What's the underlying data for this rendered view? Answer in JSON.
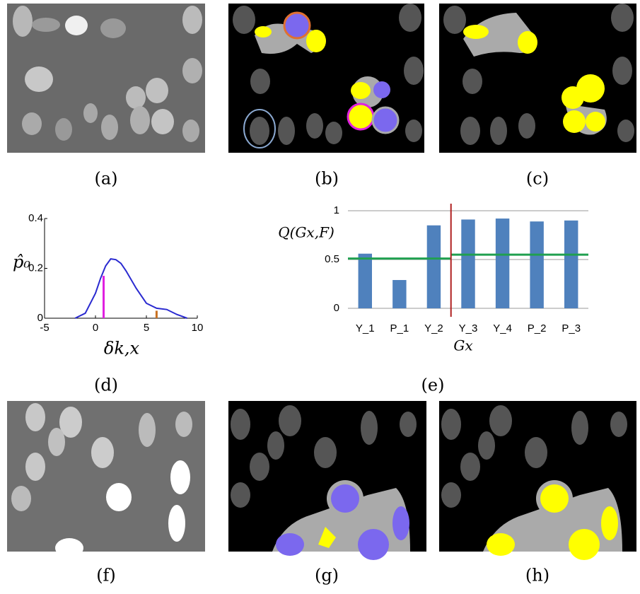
{
  "panel_labels": [
    "(a)",
    "(b)",
    "(c)",
    "(d)",
    "(e)",
    "(f)",
    "(g)",
    "(h)"
  ],
  "chart_data": [
    {
      "type": "line",
      "ylabel": "p̂₀",
      "xlabel": "δk,x",
      "x": [
        -2,
        -1,
        0,
        0.5,
        1,
        1.5,
        2,
        2.5,
        3,
        4,
        5,
        6,
        7,
        8,
        9
      ],
      "values": [
        0,
        0.02,
        0.1,
        0.16,
        0.21,
        0.238,
        0.235,
        0.22,
        0.19,
        0.12,
        0.06,
        0.04,
        0.035,
        0.015,
        0
      ],
      "color": "#2a2ad0",
      "markers": [
        {
          "x": 0.8,
          "value": 0.17,
          "color": "#e020e0"
        },
        {
          "x": 6,
          "value": 0.03,
          "color": "#c87020"
        }
      ],
      "xlim": [
        -5,
        10
      ],
      "xticks": [
        -5,
        0,
        5,
        10
      ],
      "ylim": [
        0,
        0.4
      ],
      "yticks": [
        0,
        0.2,
        0.4
      ]
    },
    {
      "type": "bar",
      "ylabel": "Q(Gx,F)",
      "xlabel": "Gx",
      "categories": [
        "Y_1",
        "P_1",
        "Y_2",
        "Y_3",
        "Y_4",
        "P_2",
        "P_3"
      ],
      "values": [
        0.56,
        0.29,
        0.85,
        0.91,
        0.92,
        0.89,
        0.9
      ],
      "color": "#4f81bd",
      "ylim": [
        0,
        1
      ],
      "yticks": [
        0,
        0.5,
        1
      ],
      "grid": true,
      "thresholds": [
        {
          "value": 0.51,
          "from": 0,
          "to": 2,
          "color": "#20a050"
        },
        {
          "value": 0.55,
          "from": 3,
          "to": 6,
          "color": "#20a050"
        }
      ],
      "divider_after": 2,
      "divider_color": "#b02020"
    }
  ]
}
